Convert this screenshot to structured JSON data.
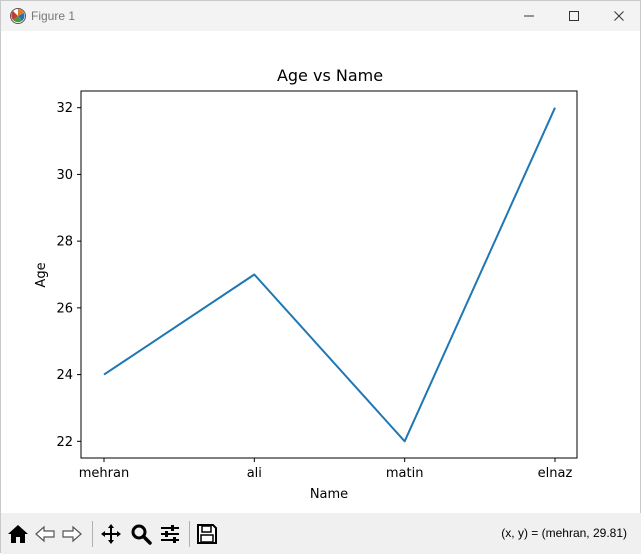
{
  "window": {
    "title": "Figure 1"
  },
  "chart_data": {
    "type": "line",
    "title": "Age vs Name",
    "xlabel": "Name",
    "ylabel": "Age",
    "categories": [
      "mehran",
      "ali",
      "matin",
      "elnaz"
    ],
    "values": [
      24,
      27,
      22,
      32
    ],
    "ylim": [
      21.5,
      32.5
    ],
    "yticks": [
      22,
      24,
      26,
      28,
      30,
      32
    ],
    "line_color": "#1f77b4",
    "grid": false,
    "legend": false
  },
  "toolbar": {
    "buttons": [
      {
        "name": "home-icon",
        "label": "Home"
      },
      {
        "name": "back-icon",
        "label": "Back"
      },
      {
        "name": "forward-icon",
        "label": "Forward"
      },
      {
        "name": "pan-icon",
        "label": "Pan"
      },
      {
        "name": "zoom-icon",
        "label": "Zoom"
      },
      {
        "name": "configure-subplots-icon",
        "label": "Subplots"
      },
      {
        "name": "save-icon",
        "label": "Save"
      }
    ],
    "coordinates": "(x, y) = (mehran, 29.81)"
  }
}
